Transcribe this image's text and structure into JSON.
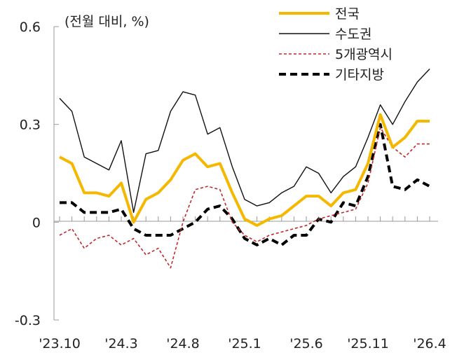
{
  "chart_data": {
    "type": "line",
    "unit_label": "(전월 대비, %)",
    "ylim": [
      -0.3,
      0.6
    ],
    "y_ticks": [
      {
        "value": 0.6,
        "label": "0.6"
      },
      {
        "value": 0.3,
        "label": "0.3"
      },
      {
        "value": 0,
        "label": "0"
      },
      {
        "value": -0.3,
        "label": "-0.3"
      }
    ],
    "x_tick_labels": [
      {
        "index": 0,
        "label": "'23.10"
      },
      {
        "index": 5,
        "label": "'24.3"
      },
      {
        "index": 10,
        "label": "'24.8"
      },
      {
        "index": 15,
        "label": "'25.1"
      },
      {
        "index": 20,
        "label": "'25.6"
      },
      {
        "index": 25,
        "label": "'25.11"
      },
      {
        "index": 30,
        "label": "'26.4"
      }
    ],
    "x": [
      "'23.10",
      "'23.11",
      "'23.12",
      "'24.1",
      "'24.2",
      "'24.3",
      "'24.4",
      "'24.5",
      "'24.6",
      "'24.7",
      "'24.8",
      "'24.9",
      "'24.10",
      "'24.11",
      "'24.12",
      "'25.1",
      "'25.2",
      "'25.3",
      "'25.4",
      "'25.5",
      "'25.6",
      "'25.7",
      "'25.8",
      "'25.9",
      "'25.10",
      "'25.11",
      "'25.12",
      "'26.1",
      "'26.2",
      "'26.3",
      "'26.4"
    ],
    "legend_position": "top-right",
    "grid": false,
    "series": [
      {
        "name": "전국",
        "color": "#f5b800",
        "style": "solid-thick",
        "values": [
          0.2,
          0.18,
          0.09,
          0.09,
          0.08,
          0.12,
          0.0,
          0.07,
          0.09,
          0.13,
          0.19,
          0.21,
          0.17,
          0.18,
          0.09,
          0.01,
          -0.01,
          0.01,
          0.02,
          0.05,
          0.08,
          0.08,
          0.05,
          0.09,
          0.1,
          0.18,
          0.33,
          0.23,
          0.26,
          0.31,
          0.31
        ]
      },
      {
        "name": "수도권",
        "color": "#111111",
        "style": "solid-thin",
        "values": [
          0.38,
          0.34,
          0.2,
          0.18,
          0.16,
          0.25,
          0.03,
          0.21,
          0.22,
          0.34,
          0.4,
          0.39,
          0.27,
          0.29,
          0.17,
          0.07,
          0.05,
          0.06,
          0.09,
          0.11,
          0.17,
          0.15,
          0.09,
          0.14,
          0.17,
          0.26,
          0.36,
          0.3,
          0.37,
          0.43,
          0.47
        ]
      },
      {
        "name": "5개광역시",
        "color": "#c0282c",
        "style": "dashed-thin",
        "values": [
          -0.04,
          -0.02,
          -0.08,
          -0.05,
          -0.04,
          -0.07,
          -0.05,
          -0.1,
          -0.08,
          -0.14,
          0.0,
          0.1,
          0.11,
          0.1,
          0.0,
          -0.04,
          -0.06,
          -0.04,
          -0.03,
          -0.02,
          -0.01,
          0.01,
          0.02,
          0.03,
          0.04,
          0.12,
          0.29,
          0.23,
          0.2,
          0.24,
          0.24
        ]
      },
      {
        "name": "기타지방",
        "color": "#000000",
        "style": "dashed-thick",
        "values": [
          0.06,
          0.06,
          0.03,
          0.03,
          0.03,
          0.04,
          -0.02,
          -0.04,
          -0.04,
          -0.04,
          -0.02,
          0.0,
          0.04,
          0.05,
          0.01,
          -0.05,
          -0.07,
          -0.05,
          -0.07,
          -0.04,
          -0.04,
          0.01,
          0.0,
          0.06,
          0.05,
          0.14,
          0.3,
          0.11,
          0.1,
          0.13,
          0.11
        ]
      }
    ]
  }
}
